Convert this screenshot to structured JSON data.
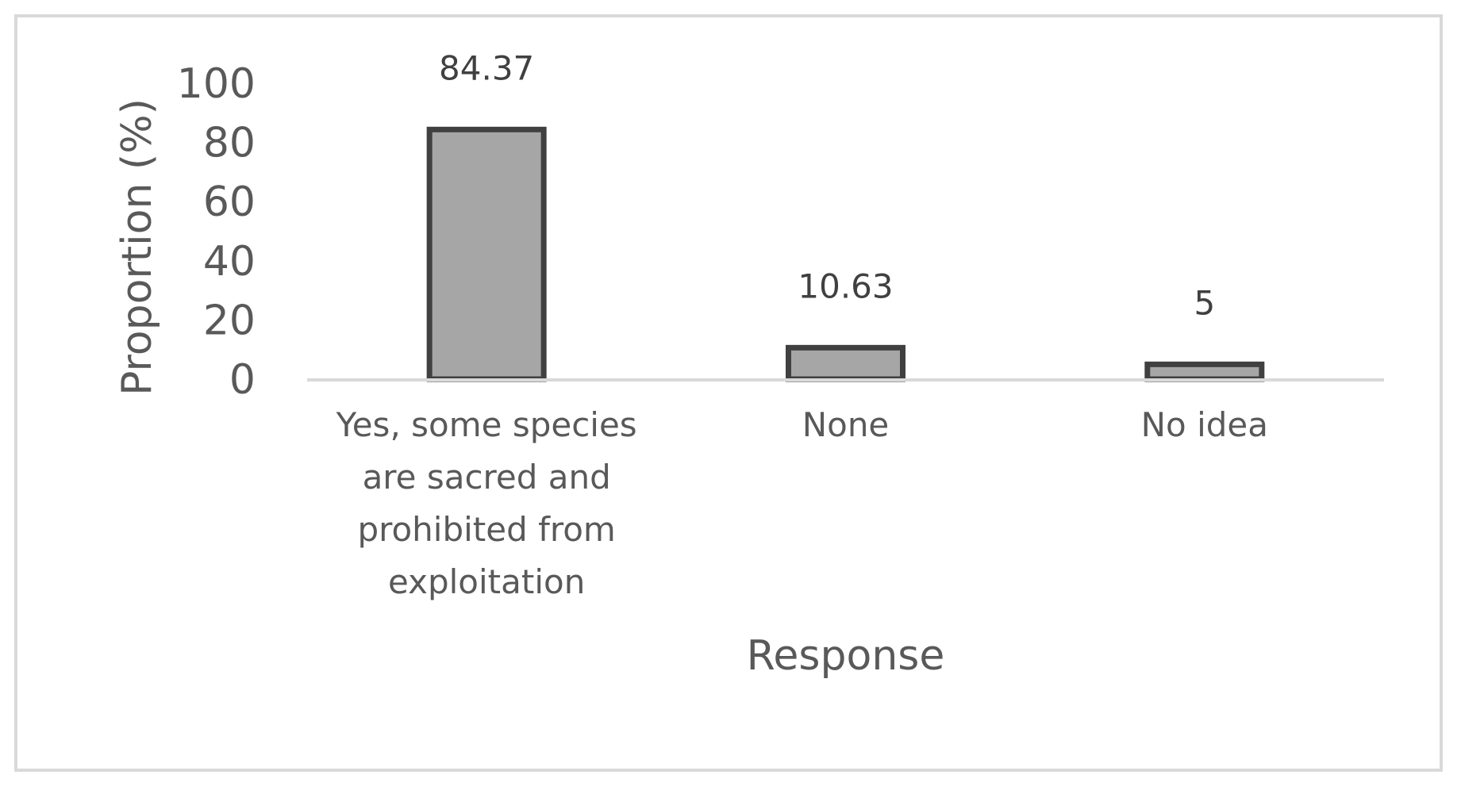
{
  "chart_data": {
    "type": "bar",
    "title": "",
    "xlabel": "Response",
    "ylabel": "Proportion (%)",
    "ylim": [
      0,
      100
    ],
    "yticks": [
      "0",
      "20",
      "40",
      "60",
      "80",
      "100"
    ],
    "categories": [
      "Yes, some species are sacred and prohibited from exploitation",
      "None",
      "No idea"
    ],
    "category_lines": [
      [
        "Yes, some species",
        "are sacred and",
        "prohibited from",
        "exploitation"
      ],
      [
        "None"
      ],
      [
        "No idea"
      ]
    ],
    "values": [
      84.37,
      10.63,
      5
    ],
    "data_labels": [
      "84.37",
      "10.63",
      "5"
    ],
    "grid": false,
    "legend": "none",
    "colors": {
      "bar_fill": "#a6a6a6",
      "bar_outline": "#404040",
      "axis_line": "#d9d9d9",
      "text": "#595959"
    }
  }
}
